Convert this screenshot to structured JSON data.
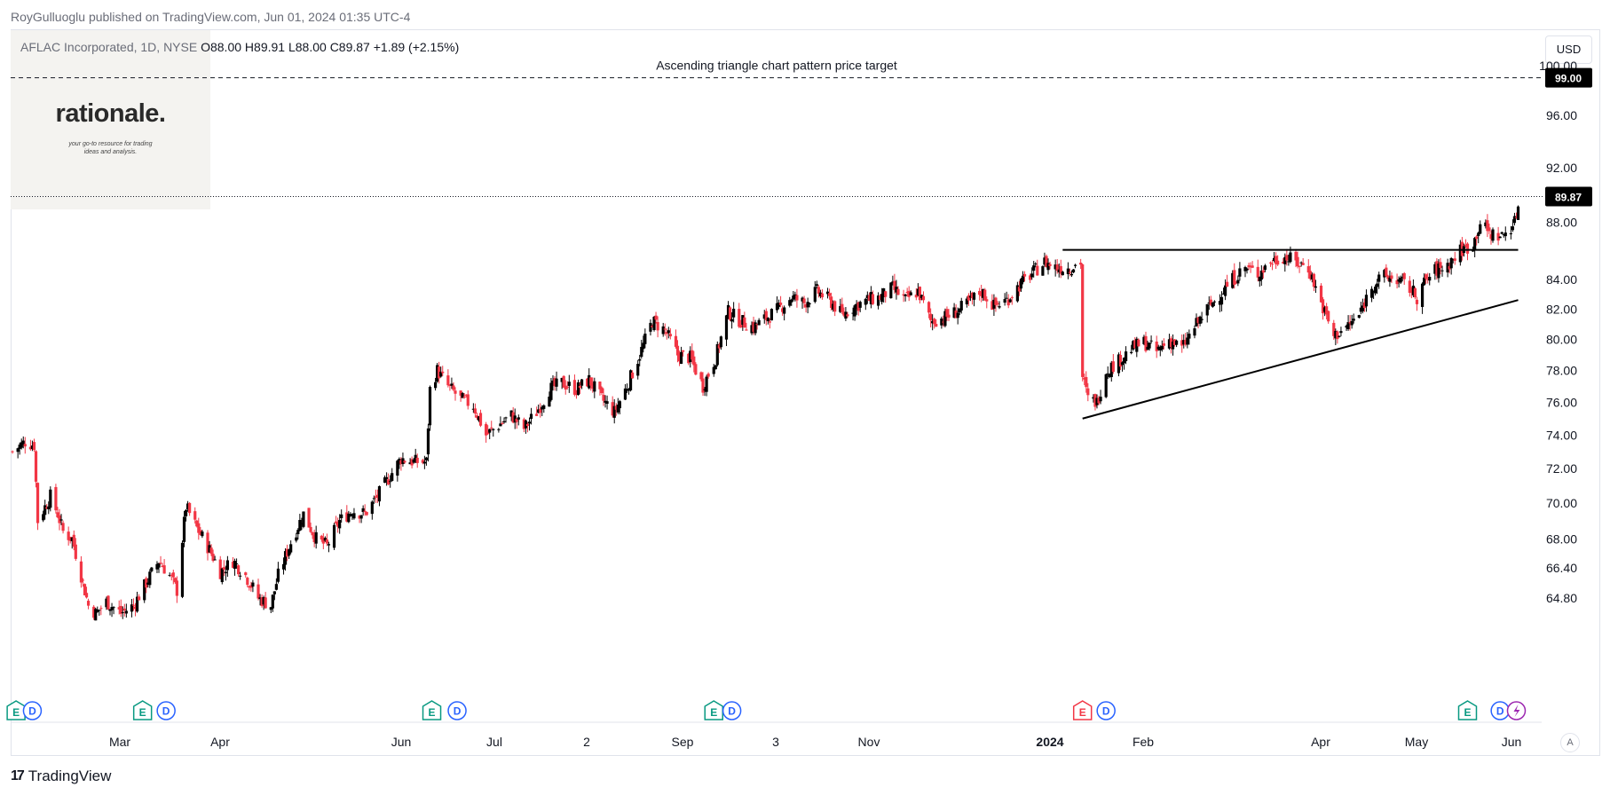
{
  "attribution": "RoyGulluoglu published on TradingView.com, Jun 01, 2024 01:35 UTC-4",
  "symbol": {
    "name": "AFLAC Incorporated, 1D, NYSE",
    "open": "O88.00",
    "high": "H89.91",
    "low": "L88.00",
    "close": "C89.87",
    "change": "+1.89 (+2.15%)"
  },
  "logo": {
    "word": "rationale.",
    "tagline_line1": "your go-to resource for trading",
    "tagline_line2": "ideas and analysis."
  },
  "currency": "USD",
  "footer_brand": "TradingView",
  "auto_scale_label": "A",
  "annotation": {
    "target_label": "Ascending triangle chart pattern price target",
    "target_price": "99.00",
    "last_price": "89.87"
  },
  "colors": {
    "up": "#000000",
    "down": "#f23645",
    "earnings": "#089981",
    "dividend": "#2962ff",
    "earnings_upcoming": "#f23645",
    "split": "#9c27b0"
  },
  "chart_data": {
    "type": "candlestick",
    "title": "AFLAC Incorporated, 1D, NYSE",
    "yscale": "log",
    "ylim": [
      63.5,
      101
    ],
    "price_ticks": [
      "100.00",
      "96.00",
      "92.00",
      "88.00",
      "84.00",
      "82.00",
      "80.00",
      "78.00",
      "76.00",
      "74.00",
      "72.00",
      "70.00",
      "68.00",
      "66.40",
      "64.80"
    ],
    "time_ticks": [
      {
        "label": "Mar",
        "bold": false
      },
      {
        "label": "Apr",
        "bold": false
      },
      {
        "label": "Jun",
        "bold": false
      },
      {
        "label": "Jul",
        "bold": false
      },
      {
        "label": "2",
        "bold": false
      },
      {
        "label": "Sep",
        "bold": false
      },
      {
        "label": "3",
        "bold": false
      },
      {
        "label": "Nov",
        "bold": false
      },
      {
        "label": "2024",
        "bold": true
      },
      {
        "label": "Feb",
        "bold": false
      },
      {
        "label": "Apr",
        "bold": false
      },
      {
        "label": "May",
        "bold": false
      },
      {
        "label": "Jun",
        "bold": false
      }
    ],
    "price_path": [
      [
        "2023-02-17",
        73.0
      ],
      [
        "2023-02-24",
        73.6
      ],
      [
        "2023-03-01",
        73.4
      ],
      [
        "2023-03-03",
        69.0
      ],
      [
        "2023-03-07",
        69.8
      ],
      [
        "2023-03-10",
        70.4
      ],
      [
        "2023-03-14",
        69.4
      ],
      [
        "2023-03-17",
        68.4
      ],
      [
        "2023-03-22",
        68.0
      ],
      [
        "2023-03-24",
        67.2
      ],
      [
        "2023-03-28",
        65.6
      ],
      [
        "2023-03-31",
        64.4
      ],
      [
        "2023-04-04",
        64.0
      ],
      [
        "2023-04-10",
        64.6
      ],
      [
        "2023-04-18",
        64.0
      ],
      [
        "2023-04-25",
        64.4
      ],
      [
        "2023-05-02",
        65.6
      ],
      [
        "2023-05-09",
        66.8
      ],
      [
        "2023-05-15",
        66.0
      ],
      [
        "2023-05-19",
        65.2
      ],
      [
        "2023-05-24",
        69.8
      ],
      [
        "2023-05-30",
        68.6
      ],
      [
        "2023-06-06",
        67.4
      ],
      [
        "2023-06-12",
        66.2
      ],
      [
        "2023-06-19",
        66.8
      ],
      [
        "2023-06-26",
        66.0
      ],
      [
        "2023-07-03",
        64.8
      ],
      [
        "2023-07-10",
        64.4
      ],
      [
        "2023-07-14",
        66.0
      ],
      [
        "2023-07-21",
        67.8
      ],
      [
        "2023-07-28",
        69.4
      ],
      [
        "2023-08-04",
        68.0
      ],
      [
        "2023-08-10",
        67.6
      ],
      [
        "2023-08-17",
        69.0
      ],
      [
        "2023-08-24",
        69.6
      ],
      [
        "2023-08-31",
        69.4
      ],
      [
        "2023-09-07",
        70.4
      ],
      [
        "2023-09-14",
        71.6
      ],
      [
        "2023-09-20",
        72.6
      ],
      [
        "2023-09-27",
        72.4
      ],
      [
        "2023-10-04",
        72.4
      ],
      [
        "2023-10-06",
        76.8
      ],
      [
        "2023-10-10",
        78.0
      ],
      [
        "2023-10-16",
        77.0
      ],
      [
        "2023-10-23",
        76.2
      ],
      [
        "2023-10-30",
        75.8
      ],
      [
        "2023-11-06",
        74.0
      ],
      [
        "2023-11-13",
        74.6
      ],
      [
        "2023-11-20",
        75.2
      ],
      [
        "2023-11-27",
        74.4
      ],
      [
        "2023-12-04",
        75.4
      ],
      [
        "2023-12-11",
        76.8
      ],
      [
        "2023-12-18",
        77.2
      ],
      [
        "2023-12-26",
        76.8
      ],
      [
        "2024-01-02",
        77.4
      ],
      [
        "2024-01-09",
        76.2
      ],
      [
        "2024-01-16",
        75.4
      ],
      [
        "2024-01-23",
        77.0
      ],
      [
        "2024-01-30",
        79.0
      ],
      [
        "2024-02-06",
        81.2
      ],
      [
        "2024-02-13",
        80.6
      ],
      [
        "2024-02-20",
        79.0
      ],
      [
        "2024-02-27",
        78.8
      ],
      [
        "2024-03-05",
        77.0
      ],
      [
        "2024-03-12",
        78.8
      ],
      [
        "2024-03-19",
        81.8
      ],
      [
        "2024-03-26",
        81.2
      ],
      [
        "2024-04-02",
        80.8
      ],
      [
        "2024-04-09",
        81.4
      ],
      [
        "2024-04-16",
        82.0
      ],
      [
        "2024-04-23",
        82.8
      ],
      [
        "2024-04-30",
        82.4
      ],
      [
        "2024-05-07",
        83.2
      ],
      [
        "2024-05-14",
        82.6
      ],
      [
        "2024-05-21",
        81.6
      ],
      [
        "2024-05-28",
        82.2
      ],
      [
        "2024-06-04",
        82.6
      ],
      [
        "2024-06-11",
        82.8
      ],
      [
        "2024-06-18",
        83.4
      ],
      [
        "2024-06-25",
        82.6
      ],
      [
        "2024-07-02",
        83.2
      ],
      [
        "2024-07-09",
        81.2
      ],
      [
        "2024-07-16",
        81.4
      ],
      [
        "2024-07-23",
        81.8
      ],
      [
        "2024-07-30",
        82.4
      ],
      [
        "2024-08-06",
        83.2
      ],
      [
        "2024-08-13",
        82.2
      ],
      [
        "2024-08-20",
        82.6
      ],
      [
        "2024-08-27",
        83.6
      ],
      [
        "2024-09-03",
        84.4
      ],
      [
        "2024-09-10",
        85.2
      ],
      [
        "2024-09-17",
        84.8
      ],
      [
        "2024-09-24",
        84.8
      ],
      [
        "2024-09-30",
        85.2
      ],
      [
        "2024-10-01",
        77.6
      ],
      [
        "2024-10-04",
        76.2
      ],
      [
        "2024-10-09",
        76.0
      ],
      [
        "2024-10-14",
        78.0
      ],
      [
        "2024-10-21",
        78.6
      ],
      [
        "2024-10-28",
        79.4
      ],
      [
        "2024-11-04",
        79.8
      ],
      [
        "2024-11-11",
        79.2
      ],
      [
        "2024-11-18",
        80.0
      ],
      [
        "2024-11-25",
        79.4
      ],
      [
        "2024-12-02",
        80.8
      ],
      [
        "2024-12-09",
        82.0
      ],
      [
        "2024-12-16",
        83.0
      ],
      [
        "2024-12-23",
        84.0
      ],
      [
        "2024-12-30",
        84.8
      ],
      [
        "2025-01-06",
        84.4
      ],
      [
        "2025-01-13",
        85.2
      ],
      [
        "2025-01-20",
        85.6
      ],
      [
        "2025-01-27",
        85.2
      ],
      [
        "2025-02-03",
        84.8
      ],
      [
        "2025-02-10",
        82.4
      ],
      [
        "2025-02-17",
        80.2
      ],
      [
        "2025-02-24",
        80.8
      ],
      [
        "2025-03-03",
        81.6
      ],
      [
        "2025-03-10",
        83.6
      ],
      [
        "2025-03-17",
        84.2
      ],
      [
        "2025-03-24",
        84.0
      ],
      [
        "2025-03-31",
        83.4
      ],
      [
        "2025-04-04",
        82.8
      ],
      [
        "2025-04-07",
        83.6
      ],
      [
        "2025-04-14",
        84.6
      ],
      [
        "2025-04-21",
        85.0
      ],
      [
        "2025-04-28",
        86.0
      ],
      [
        "2025-05-05",
        86.4
      ],
      [
        "2025-05-09",
        88.0
      ],
      [
        "2025-05-14",
        87.2
      ],
      [
        "2025-05-21",
        87.0
      ],
      [
        "2025-05-28",
        88.0
      ],
      [
        "2025-05-31",
        89.87
      ]
    ],
    "drawings": {
      "resistance": {
        "from": [
          "2024-09-20",
          86.05
        ],
        "to": [
          "2025-05-30",
          86.05
        ]
      },
      "support": {
        "from": [
          "2024-10-01",
          75.0
        ],
        "to": [
          "2025-05-30",
          82.6
        ]
      },
      "target_line": {
        "price": 99.0
      }
    },
    "events": [
      {
        "date": "2023-02-19",
        "kind": "E"
      },
      {
        "date": "2023-02-28",
        "kind": "D"
      },
      {
        "date": "2023-04-30",
        "kind": "E"
      },
      {
        "date": "2023-05-13",
        "kind": "D"
      },
      {
        "date": "2023-10-07",
        "kind": "E"
      },
      {
        "date": "2023-10-21",
        "kind": "D"
      },
      {
        "date": "2024-03-11",
        "kind": "E"
      },
      {
        "date": "2024-03-21",
        "kind": "D"
      },
      {
        "date": "2024-10-01",
        "kind": "E-upcoming"
      },
      {
        "date": "2024-10-14",
        "kind": "D"
      },
      {
        "date": "2025-05-02",
        "kind": "E"
      },
      {
        "date": "2025-05-20",
        "kind": "D"
      },
      {
        "date": "2025-05-29",
        "kind": "split"
      }
    ]
  }
}
